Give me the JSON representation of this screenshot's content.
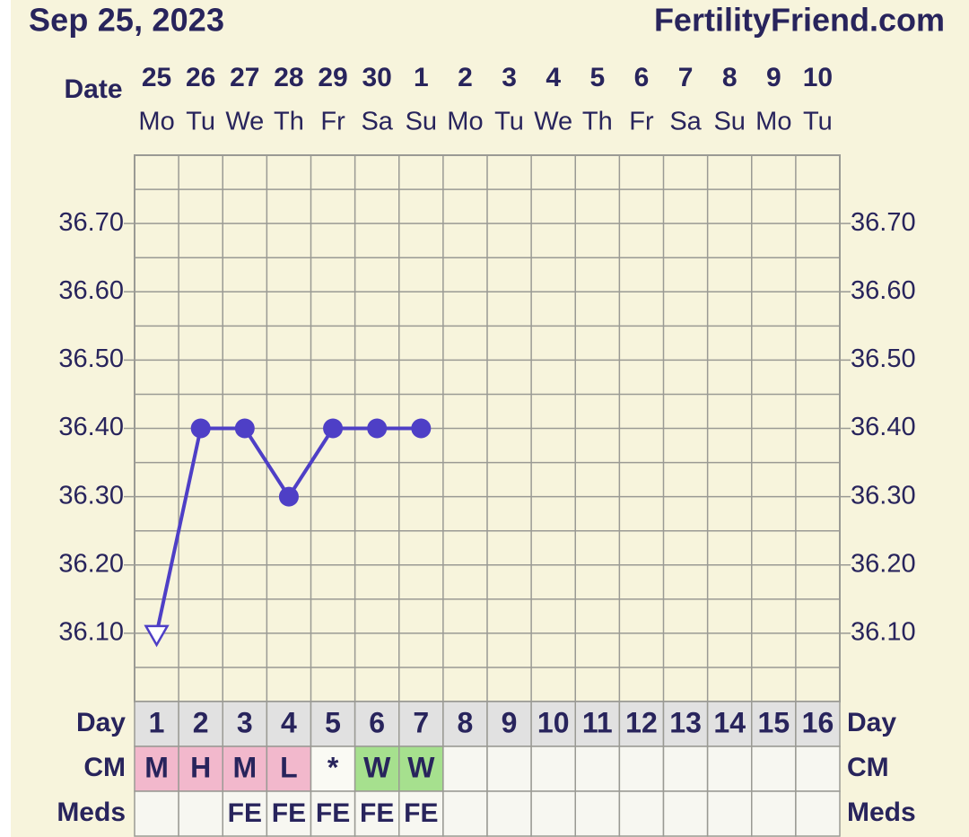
{
  "chart_data": {
    "type": "line",
    "title": "Sep 25, 2023",
    "site": "FertilityFriend.com",
    "date_label": "Date",
    "categories": [
      "25",
      "26",
      "27",
      "28",
      "29",
      "30",
      "1",
      "2",
      "3",
      "4",
      "5",
      "6",
      "7",
      "8",
      "9",
      "10"
    ],
    "weekdays": [
      "Mo",
      "Tu",
      "We",
      "Th",
      "Fr",
      "Sa",
      "Su",
      "Mo",
      "Tu",
      "We",
      "Th",
      "Fr",
      "Sa",
      "Su",
      "Mo",
      "Tu"
    ],
    "series": [
      {
        "color": "#4e3fc6",
        "values": [
          36.1,
          36.4,
          36.4,
          36.3,
          36.4,
          36.4,
          36.4,
          null,
          null,
          null,
          null,
          null,
          null,
          null,
          null,
          null
        ],
        "markers": [
          "triangle-open",
          "circle",
          "circle",
          "circle",
          "circle",
          "circle",
          "circle",
          null,
          null,
          null,
          null,
          null,
          null,
          null,
          null,
          null
        ]
      }
    ],
    "ylim": [
      36.0,
      36.8
    ],
    "yticks": [
      {
        "value": 36.1,
        "label": "36.10"
      },
      {
        "value": 36.2,
        "label": "36.20"
      },
      {
        "value": 36.3,
        "label": "36.30"
      },
      {
        "value": 36.4,
        "label": "36.40"
      },
      {
        "value": 36.5,
        "label": "36.50"
      },
      {
        "value": 36.6,
        "label": "36.60"
      },
      {
        "value": 36.7,
        "label": "36.70"
      }
    ],
    "y_minor_ticks": [
      36.05,
      36.15,
      36.25,
      36.35,
      36.45,
      36.55,
      36.65,
      36.75
    ],
    "grid": true,
    "table": {
      "rows": [
        {
          "label": "Day",
          "color": "#e1e1e1",
          "cells": [
            1,
            2,
            3,
            4,
            5,
            6,
            7,
            8,
            9,
            10,
            11,
            12,
            13,
            14,
            15,
            16
          ]
        },
        {
          "label": "CM",
          "color": "#f7f7f1",
          "cells": [
            "M",
            "H",
            "M",
            "L",
            "*",
            "W",
            "W",
            null,
            null,
            null,
            null,
            null,
            null,
            null,
            null,
            null
          ],
          "colors": [
            "#f2b8cc",
            "#f2b8cc",
            "#f2b8cc",
            "#f2b8cc",
            "#fafaf4",
            "#a6e08e",
            "#a6e08e",
            null,
            null,
            null,
            null,
            null,
            null,
            null,
            null,
            null
          ]
        },
        {
          "label": "Meds",
          "color": "#f7f7f1",
          "cells": [
            null,
            null,
            "FE",
            "FE",
            "FE",
            "FE",
            "FE",
            null,
            null,
            null,
            null,
            null,
            null,
            null,
            null,
            null
          ]
        }
      ]
    }
  }
}
